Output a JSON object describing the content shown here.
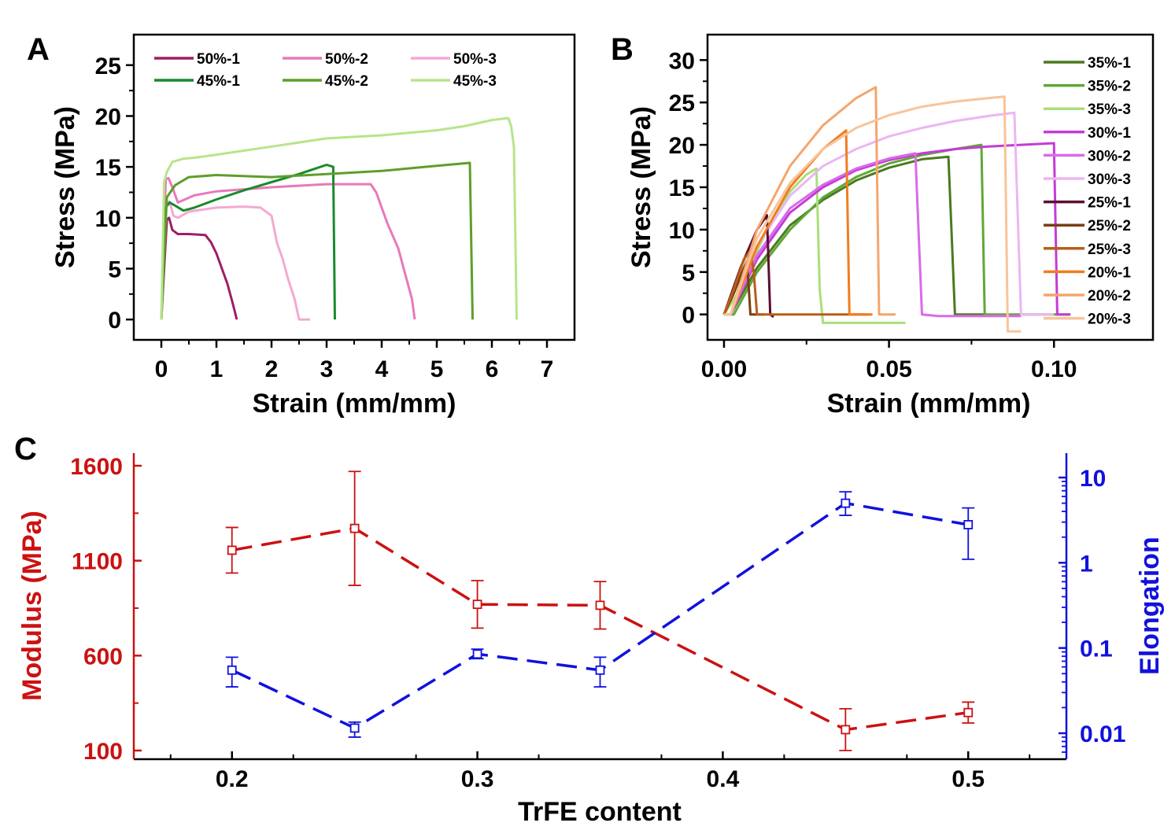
{
  "chart_data": [
    {
      "panel_label": "A",
      "type": "line",
      "xlabel": "Strain (mm/mm)",
      "ylabel": "Stress (MPa)",
      "xlim": [
        -0.5,
        7.5
      ],
      "ylim": [
        -2,
        28
      ],
      "xticks": [
        0,
        1,
        2,
        3,
        4,
        5,
        6,
        7
      ],
      "yticks": [
        0,
        5,
        10,
        15,
        20,
        25
      ],
      "legend_position": "top-left",
      "series": [
        {
          "name": "50%-1",
          "color": "#9e1f63",
          "x": [
            0,
            0.1,
            0.14,
            0.2,
            0.3,
            0.5,
            0.8,
            0.9,
            1.0,
            1.1,
            1.2,
            1.3,
            1.37
          ],
          "y": [
            0,
            9.8,
            10.0,
            8.8,
            8.4,
            8.4,
            8.3,
            7.6,
            6.5,
            5.0,
            3.5,
            1.5,
            0
          ]
        },
        {
          "name": "50%-2",
          "color": "#e879b9",
          "x": [
            0,
            0.08,
            0.13,
            0.2,
            0.3,
            0.6,
            1,
            2,
            3,
            3.8,
            3.9,
            4.1,
            4.3,
            4.4,
            4.5,
            4.55,
            4.6
          ],
          "y": [
            0,
            13.8,
            13.9,
            13.0,
            11.5,
            12.2,
            12.6,
            13.0,
            13.3,
            13.3,
            12.5,
            9.5,
            7.0,
            5.0,
            3.0,
            2.0,
            0
          ]
        },
        {
          "name": "50%-3",
          "color": "#f4a9d3",
          "x": [
            0,
            0.08,
            0.15,
            0.22,
            0.3,
            0.5,
            1.0,
            1.5,
            1.8,
            2.0,
            2.1,
            2.2,
            2.3,
            2.42,
            2.5,
            2.6,
            2.7
          ],
          "y": [
            0,
            11.0,
            11.6,
            10.2,
            10.0,
            10.6,
            11.0,
            11.1,
            11.0,
            10.2,
            7.5,
            6.0,
            4.0,
            2.0,
            0,
            0,
            0
          ]
        },
        {
          "name": "45%-1",
          "color": "#1a8a2c",
          "x": [
            0,
            0.08,
            0.15,
            0.25,
            0.4,
            0.6,
            1,
            1.5,
            2,
            2.5,
            3.0,
            3.12,
            3.15
          ],
          "y": [
            0,
            11.0,
            11.5,
            11.2,
            10.7,
            11.0,
            11.8,
            12.7,
            13.5,
            14.3,
            15.2,
            15.0,
            0
          ]
        },
        {
          "name": "45%-2",
          "color": "#5e9e2a",
          "x": [
            0,
            0.1,
            0.25,
            0.5,
            1,
            2,
            3,
            4,
            5,
            5.6,
            5.65
          ],
          "y": [
            0,
            12.0,
            13.2,
            14.0,
            14.2,
            14.0,
            14.3,
            14.6,
            15.1,
            15.4,
            0
          ]
        },
        {
          "name": "45%-3",
          "color": "#b7e58a",
          "x": [
            0,
            0.05,
            0.1,
            0.2,
            0.4,
            0.6,
            1,
            2,
            3,
            4,
            5,
            5.5,
            6,
            6.3,
            6.35,
            6.4,
            6.45
          ],
          "y": [
            0,
            13.5,
            14.5,
            15.5,
            15.8,
            15.9,
            16.2,
            17.0,
            17.8,
            18.1,
            18.6,
            19.0,
            19.6,
            19.8,
            19.0,
            17.0,
            0
          ]
        }
      ]
    },
    {
      "panel_label": "B",
      "type": "line",
      "xlabel": "Strain (mm/mm)",
      "ylabel": "Stress (MPa)",
      "xlim": [
        -0.005,
        0.13
      ],
      "ylim": [
        -3,
        33
      ],
      "xticks": [
        0.0,
        0.05,
        0.1
      ],
      "xtick_labels": [
        "0.00",
        "0.05",
        "0.10"
      ],
      "yticks": [
        0,
        5,
        10,
        15,
        20,
        25,
        30
      ],
      "legend_position": "right",
      "series": [
        {
          "name": "35%-1",
          "color": "#4a7a1f",
          "x": [
            0,
            0.002,
            0.01,
            0.02,
            0.03,
            0.04,
            0.05,
            0.06,
            0.068,
            0.07,
            0.08
          ],
          "y": [
            0,
            0,
            5.5,
            10.5,
            13.5,
            15.8,
            17.3,
            18.3,
            18.6,
            0,
            0
          ]
        },
        {
          "name": "35%-2",
          "color": "#5fa835",
          "x": [
            0,
            0.003,
            0.01,
            0.02,
            0.03,
            0.04,
            0.05,
            0.06,
            0.07,
            0.078,
            0.079,
            0.09,
            0.105
          ],
          "y": [
            0,
            0,
            5.0,
            10.0,
            13.8,
            16.2,
            17.8,
            18.8,
            19.5,
            20.0,
            0,
            0,
            0
          ]
        },
        {
          "name": "35%-3",
          "color": "#a8e07a",
          "x": [
            0,
            0.005,
            0.01,
            0.015,
            0.02,
            0.025,
            0.028,
            0.029,
            0.03,
            0.055
          ],
          "y": [
            0,
            3,
            7.5,
            11.5,
            14.5,
            16.5,
            17.2,
            3,
            -1.0,
            -1.0
          ]
        },
        {
          "name": "30%-1",
          "color": "#c43bd6",
          "x": [
            0,
            0.002,
            0.01,
            0.02,
            0.03,
            0.04,
            0.05,
            0.06,
            0.07,
            0.08,
            0.09,
            0.1,
            0.101,
            0.105
          ],
          "y": [
            0,
            0,
            6.5,
            12.0,
            15.0,
            17.0,
            18.2,
            19.0,
            19.5,
            19.8,
            20.0,
            20.2,
            0,
            0
          ]
        },
        {
          "name": "30%-2",
          "color": "#d96aea",
          "x": [
            0,
            0.002,
            0.01,
            0.02,
            0.03,
            0.04,
            0.05,
            0.058,
            0.06,
            0.065,
            0.09
          ],
          "y": [
            0,
            0,
            7.0,
            12.5,
            15.3,
            17.2,
            18.4,
            19.0,
            0,
            -0.2,
            -0.2
          ]
        },
        {
          "name": "30%-3",
          "color": "#ecb6f2",
          "x": [
            0,
            0.002,
            0.01,
            0.02,
            0.03,
            0.04,
            0.05,
            0.06,
            0.07,
            0.08,
            0.088,
            0.09,
            0.1
          ],
          "y": [
            0,
            0,
            8.0,
            14.0,
            17.5,
            19.5,
            21.0,
            22.0,
            22.8,
            23.4,
            23.8,
            0,
            0
          ]
        },
        {
          "name": "25%-1",
          "color": "#5c0e32",
          "x": [
            0,
            0.005,
            0.01,
            0.013,
            0.014,
            0.015
          ],
          "y": [
            0,
            5.5,
            10.0,
            11.7,
            0,
            -0.3
          ]
        },
        {
          "name": "25%-2",
          "color": "#7a3f10",
          "x": [
            0,
            0.003,
            0.006,
            0.007,
            0.008,
            0.012
          ],
          "y": [
            0,
            2.5,
            5.5,
            6.3,
            0,
            0
          ]
        },
        {
          "name": "25%-3",
          "color": "#b85e18",
          "x": [
            0,
            0.003,
            0.006,
            0.008,
            0.009,
            0.01,
            0.02,
            0.03,
            0.044
          ],
          "y": [
            0,
            3.0,
            6.5,
            7.5,
            5,
            0,
            0,
            0,
            0
          ]
        },
        {
          "name": "20%-1",
          "color": "#f07d20",
          "x": [
            0,
            0.002,
            0.01,
            0.02,
            0.03,
            0.037,
            0.038,
            0.045
          ],
          "y": [
            0,
            0,
            8.0,
            15.0,
            19.5,
            21.7,
            0,
            0
          ]
        },
        {
          "name": "20%-2",
          "color": "#f4a56e",
          "x": [
            0,
            0.002,
            0.01,
            0.02,
            0.03,
            0.04,
            0.046,
            0.047,
            0.052
          ],
          "y": [
            0,
            0,
            10.0,
            17.5,
            22.3,
            25.5,
            26.8,
            0,
            0
          ]
        },
        {
          "name": "20%-3",
          "color": "#f8c49a",
          "x": [
            0,
            0.002,
            0.01,
            0.02,
            0.03,
            0.04,
            0.05,
            0.06,
            0.07,
            0.08,
            0.085,
            0.086,
            0.09
          ],
          "y": [
            0,
            0,
            9.0,
            15.5,
            19.5,
            22.0,
            23.5,
            24.5,
            25.1,
            25.5,
            25.7,
            -2,
            -2
          ]
        }
      ]
    },
    {
      "panel_label": "C",
      "type": "line",
      "xlabel": "TrFE content",
      "ylabel": "Modulus (MPa)",
      "y2label": "Elongation",
      "y2scale": "log",
      "xlim": [
        0.16,
        0.54
      ],
      "ylim": [
        100,
        1600
      ],
      "y2lim": [
        0.005,
        15
      ],
      "xticks": [
        0.2,
        0.3,
        0.4,
        0.5
      ],
      "yticks": [
        100,
        600,
        1100,
        1600
      ],
      "y2ticks": [
        0.01,
        0.1,
        1,
        10
      ],
      "y2tick_labels": [
        "0.01",
        "0.1",
        "1",
        "10"
      ],
      "colors": {
        "modulus": "#cc1111",
        "elongation": "#1111dd"
      },
      "series": [
        {
          "name": "Modulus",
          "axis": "left",
          "color": "#cc1111",
          "x": [
            0.2,
            0.25,
            0.3,
            0.35,
            0.45,
            0.5
          ],
          "y": [
            1155,
            1270,
            870,
            865,
            210,
            300
          ],
          "err": [
            120,
            300,
            125,
            125,
            110,
            55
          ]
        },
        {
          "name": "Elongation",
          "axis": "right",
          "color": "#1111dd",
          "x": [
            0.2,
            0.25,
            0.3,
            0.35,
            0.45,
            0.5
          ],
          "y": [
            0.055,
            0.0115,
            0.085,
            0.055,
            5.0,
            2.8
          ],
          "err_low": [
            0.035,
            0.009,
            0.075,
            0.035,
            3.6,
            1.1
          ],
          "err_high": [
            0.078,
            0.0135,
            0.097,
            0.078,
            6.8,
            4.4
          ]
        }
      ]
    }
  ]
}
